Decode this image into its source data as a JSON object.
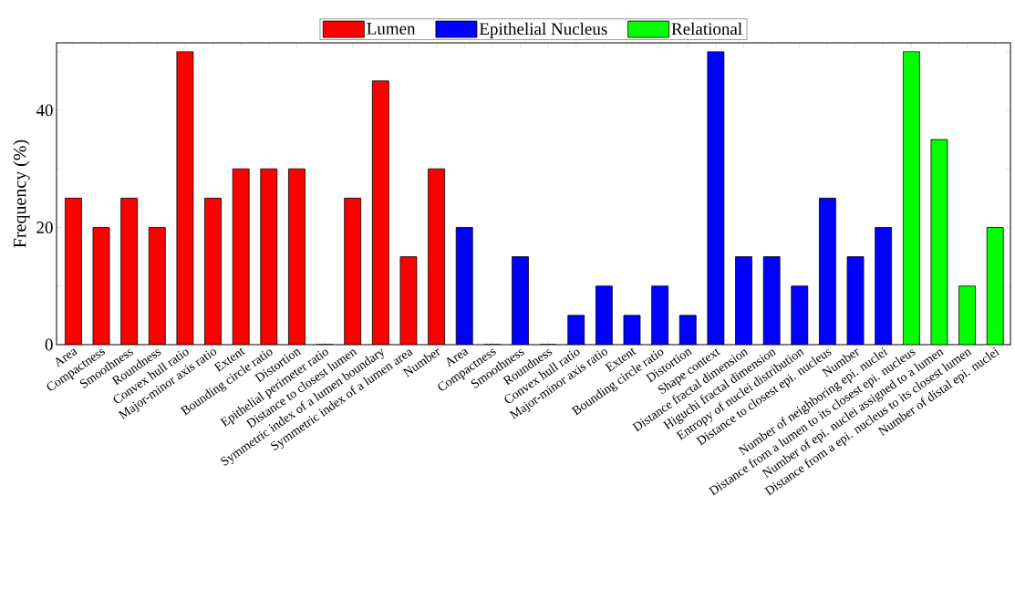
{
  "chart_data": {
    "type": "bar",
    "ylabel": "Frequency (%)",
    "categories": [
      "Area",
      "Compactness",
      "Smoothness",
      "Roundness",
      "Convex hull ratio",
      "Major-minor axis ratio",
      "Extent",
      "Bounding circle ratio",
      "Distortion",
      "Epithelial perimeter ratio",
      "Distance to closest lumen",
      "Symmetric index of a lumen boundary",
      "Symmetric index of a lumen area",
      "Number",
      "Area",
      "Compactness",
      "Smoothness",
      "Roundness",
      "Convex hull ratio",
      "Major-minor axis ratio",
      "Extent",
      "Bounding circle ratio",
      "Distortion",
      "Shape context",
      "Distance fractal dimension",
      "Higuchi fractal dimension",
      "Entropy of nuclei distribution",
      "Distance to closest epi. nucleus",
      "Number",
      "Number of neighboring epi. nuclei",
      "Distance from a lumen to its closest epi. nucleus",
      "Number of epi. nuclei assigned to a lumen",
      "Distance from a epi. nucleus to its closest lumen",
      "Number of distal epi. nuclei"
    ],
    "series": [
      {
        "name": "Lumen",
        "color": "#ff0000",
        "values": [
          25,
          20,
          25,
          20,
          50,
          25,
          30,
          30,
          30,
          0,
          25,
          45,
          15,
          30,
          null,
          null,
          null,
          null,
          null,
          null,
          null,
          null,
          null,
          null,
          null,
          null,
          null,
          null,
          null,
          null,
          null,
          null,
          null,
          null
        ]
      },
      {
        "name": "Epithelial Nucleus",
        "color": "#0000ff",
        "values": [
          null,
          null,
          null,
          null,
          null,
          null,
          null,
          null,
          null,
          null,
          null,
          null,
          null,
          null,
          20,
          0,
          15,
          0,
          5,
          10,
          5,
          10,
          5,
          50,
          15,
          15,
          10,
          25,
          15,
          20,
          null,
          null,
          null,
          null
        ]
      },
      {
        "name": "Relational",
        "color": "#00ff00",
        "values": [
          null,
          null,
          null,
          null,
          null,
          null,
          null,
          null,
          null,
          null,
          null,
          null,
          null,
          null,
          null,
          null,
          null,
          null,
          null,
          null,
          null,
          null,
          null,
          null,
          null,
          null,
          null,
          null,
          null,
          null,
          50,
          35,
          10,
          20
        ]
      }
    ],
    "ylim": [
      0,
      51.5
    ],
    "yticks": [
      0,
      {
        "value": 10,
        "label": null
      },
      20,
      {
        "value": 30,
        "label": null
      },
      40,
      {
        "value": 50,
        "label": null
      }
    ],
    "legend": "top"
  }
}
